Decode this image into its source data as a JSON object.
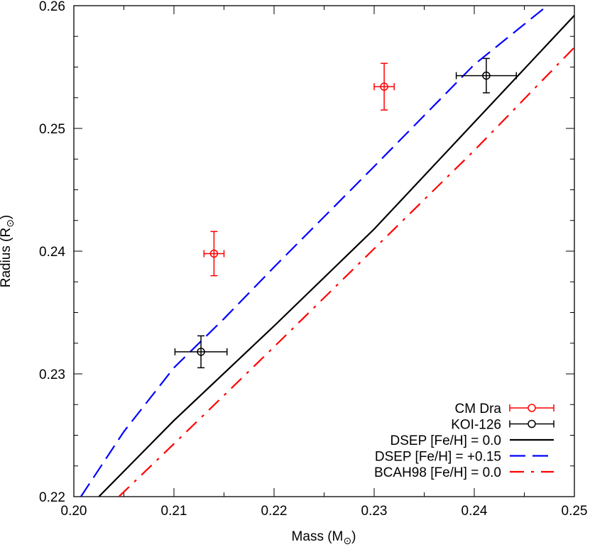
{
  "chart_data": {
    "type": "scatter",
    "title": "",
    "xlabel": "Mass (M",
    "xlabel_sub": "⊙",
    "xlabel_close": ")",
    "ylabel": "Radius (R",
    "ylabel_sub": "⊙",
    "ylabel_close": ")",
    "xlim": [
      0.2,
      0.25
    ],
    "ylim": [
      0.22,
      0.26
    ],
    "x_ticks": [
      "0.20",
      "0.21",
      "0.22",
      "0.23",
      "0.24",
      "0.25"
    ],
    "y_ticks": [
      "0.22",
      "0.23",
      "0.24",
      "0.25",
      "0.26"
    ],
    "legend_position": "bottom-right",
    "grid": false,
    "series": [
      {
        "name": "CM Dra",
        "kind": "points",
        "color": "#ff0000",
        "points": [
          {
            "x": 0.214,
            "y": 0.2398,
            "xerr": 0.001,
            "yerr": 0.0018
          },
          {
            "x": 0.231,
            "y": 0.2534,
            "xerr": 0.001,
            "yerr": 0.0019
          }
        ]
      },
      {
        "name": "KOI-126",
        "kind": "points",
        "color": "#000000",
        "points": [
          {
            "x": 0.2127,
            "y": 0.2318,
            "xerr": 0.0026,
            "yerr": 0.0013
          },
          {
            "x": 0.2412,
            "y": 0.2543,
            "xerr": 0.003,
            "yerr": 0.0014
          }
        ]
      },
      {
        "name": "DSEP [Fe/H] = 0.0",
        "kind": "line",
        "style": "solid",
        "color": "#000000",
        "x": [
          0.2025,
          0.21,
          0.22,
          0.23,
          0.24,
          0.25
        ],
        "y": [
          0.22,
          0.2262,
          0.2339,
          0.2418,
          0.2505,
          0.2592
        ]
      },
      {
        "name": "DSEP [Fe/H] = +0.15",
        "kind": "line",
        "style": "dashed",
        "color": "#0000ff",
        "x": [
          0.2007,
          0.205,
          0.21,
          0.215,
          0.22,
          0.23,
          0.24,
          0.2473
        ],
        "y": [
          0.22,
          0.2253,
          0.2305,
          0.2345,
          0.2387,
          0.2469,
          0.2552,
          0.26
        ]
      },
      {
        "name": "BCAH98 [Fe/H] = 0.0",
        "kind": "line",
        "style": "dashdot",
        "color": "#ff0000",
        "x": [
          0.2045,
          0.21,
          0.22,
          0.23,
          0.24,
          0.25
        ],
        "y": [
          0.22,
          0.2243,
          0.2322,
          0.2402,
          0.2482,
          0.2566
        ]
      }
    ]
  }
}
